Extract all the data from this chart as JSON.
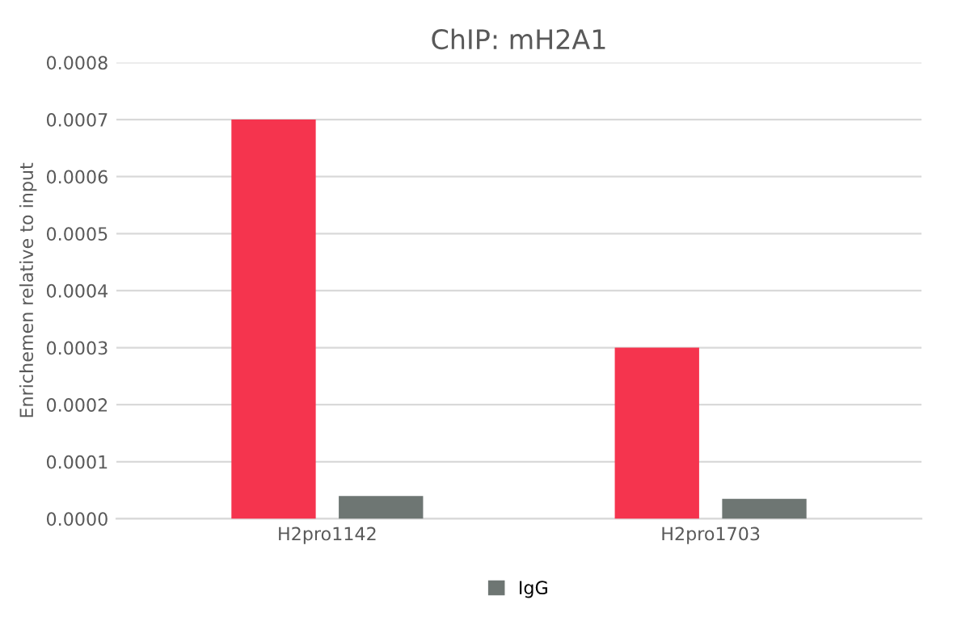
{
  "chart_data": {
    "type": "bar",
    "title": "ChIP: mH2A1",
    "ylabel": "Enrichemen relative to input",
    "categories": [
      "H2pro1142",
      "H2pro1703"
    ],
    "series": [
      {
        "color": "#f5344e",
        "values": [
          0.0007,
          0.0003
        ]
      },
      {
        "name": "IgG",
        "color": "#6e7673",
        "values": [
          4e-05,
          3.5e-05
        ]
      }
    ],
    "ylim": [
      0,
      0.0008
    ],
    "yticks": [
      {
        "value": 0,
        "label": "0.0000"
      },
      {
        "value": 0.0001,
        "label": "0.0001"
      },
      {
        "value": 0.0002,
        "label": "0.0002"
      },
      {
        "value": 0.0003,
        "label": "0.0003"
      },
      {
        "value": 0.0004,
        "label": "0.0004"
      },
      {
        "value": 0.0005,
        "label": "0.0005"
      },
      {
        "value": 0.0006,
        "label": "0.0006"
      },
      {
        "value": 0.0007,
        "label": "0.0007"
      },
      {
        "value": 0.0008,
        "label": "0.0008"
      }
    ],
    "grid": "y",
    "legend": "bottom"
  }
}
